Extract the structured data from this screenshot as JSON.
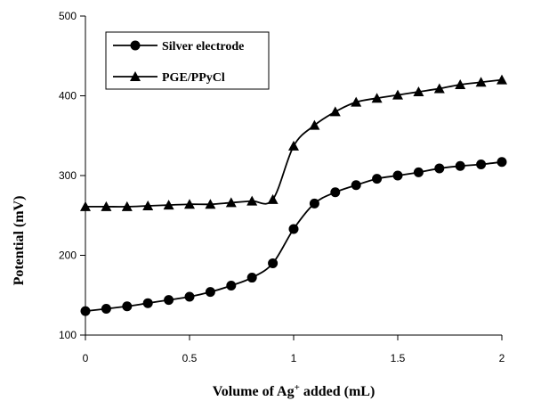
{
  "chart_data": {
    "type": "line",
    "xlabel": "Volume of Ag",
    "xlabel_sup": "+",
    "xlabel_suffix": " added (mL)",
    "ylabel": "Potential  (mV)",
    "xlim": [
      0,
      2
    ],
    "ylim": [
      100,
      500
    ],
    "x_ticks": [
      "0",
      "0.5",
      "1",
      "1.5",
      "2"
    ],
    "y_ticks": [
      "100",
      "200",
      "300",
      "400",
      "500"
    ],
    "grid": false,
    "legend_position": "top-left",
    "series": [
      {
        "name": "Silver electrode",
        "marker": "circle",
        "x": [
          0,
          0.1,
          0.2,
          0.3,
          0.4,
          0.5,
          0.6,
          0.7,
          0.8,
          0.9,
          1.0,
          1.1,
          1.2,
          1.3,
          1.4,
          1.5,
          1.6,
          1.7,
          1.8,
          1.9,
          2.0
        ],
        "y": [
          130,
          133,
          136,
          140,
          144,
          148,
          154,
          162,
          172,
          190,
          233,
          265,
          279,
          288,
          296,
          300,
          304,
          309,
          312,
          314,
          317
        ]
      },
      {
        "name": "PGE/PPyCl",
        "marker": "triangle",
        "x": [
          0,
          0.1,
          0.2,
          0.3,
          0.4,
          0.5,
          0.6,
          0.7,
          0.8,
          0.9,
          1.0,
          1.1,
          1.2,
          1.3,
          1.4,
          1.5,
          1.6,
          1.7,
          1.8,
          1.9,
          2.0
        ],
        "y": [
          261,
          261,
          261,
          262,
          263,
          264,
          264,
          266,
          268,
          270,
          337,
          363,
          380,
          392,
          397,
          401,
          405,
          409,
          414,
          417,
          420
        ]
      }
    ]
  }
}
